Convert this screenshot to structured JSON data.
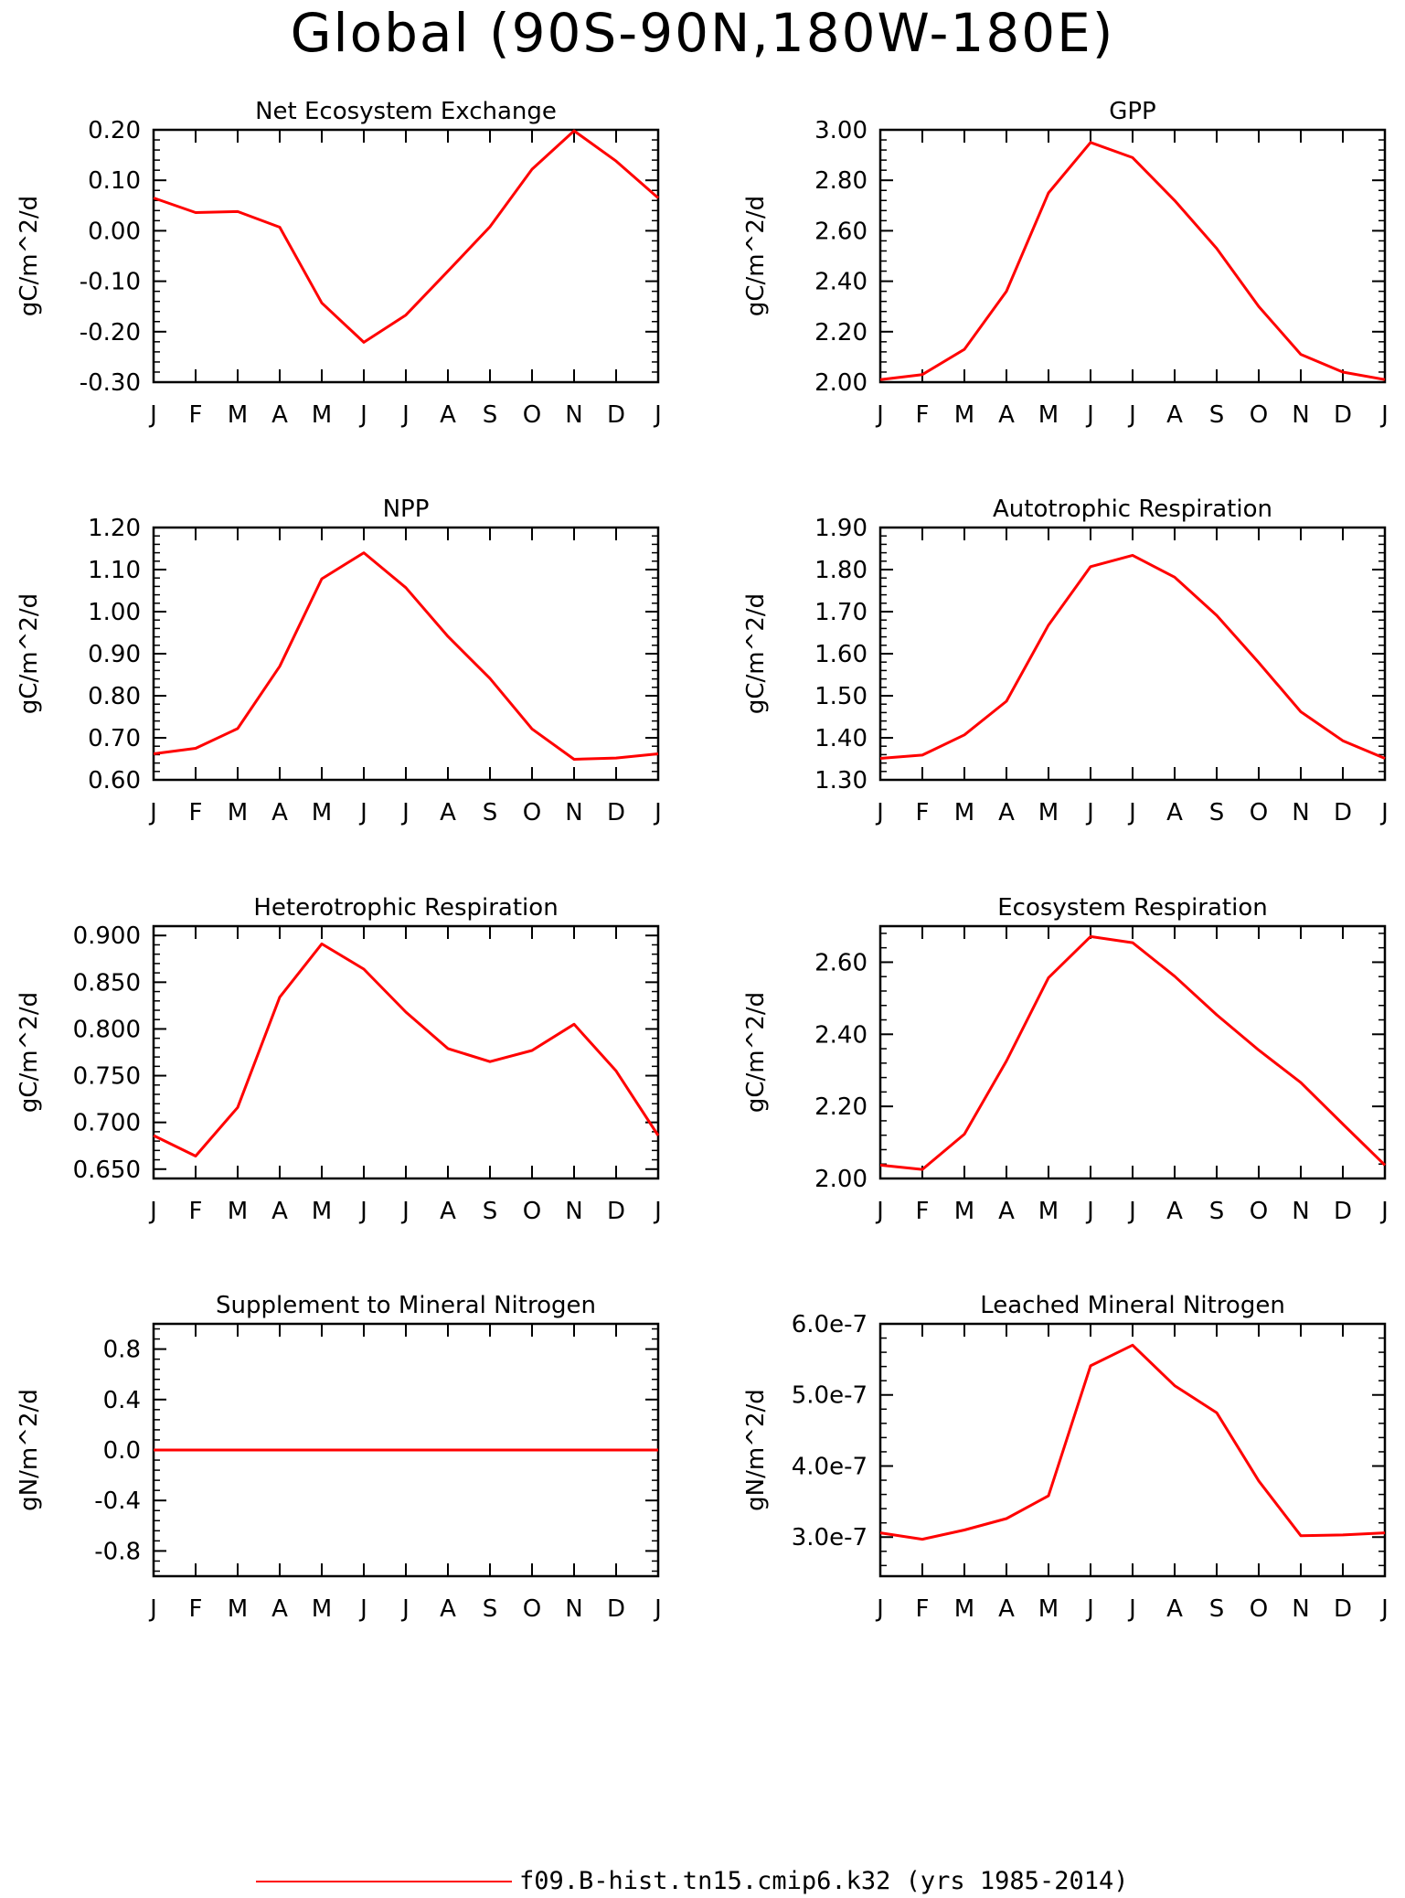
{
  "page_title": "Global (90S-90N,180W-180E)",
  "legend": {
    "label": "f09.B-hist.tn15.cmip6.k32 (yrs 1985-2014)",
    "color": "#ff0000"
  },
  "chart_data": [
    {
      "type": "line",
      "title": "Net Ecosystem Exchange",
      "ylabel": "gC/m^2/d",
      "categories": [
        "J",
        "F",
        "M",
        "A",
        "M",
        "J",
        "J",
        "A",
        "S",
        "O",
        "N",
        "D",
        "J"
      ],
      "ylim": [
        -0.3,
        0.2
      ],
      "yticks": [
        -0.3,
        -0.2,
        -0.1,
        0.0,
        0.1,
        0.2
      ],
      "ytick_labels": [
        "-0.30",
        "-0.20",
        "-0.10",
        "0.00",
        "0.10",
        "0.20"
      ],
      "values": [
        0.065,
        0.036,
        0.038,
        0.007,
        -0.143,
        -0.221,
        -0.167,
        -0.08,
        0.008,
        0.122,
        0.198,
        0.138,
        0.065
      ],
      "color": "#ff0000"
    },
    {
      "type": "line",
      "title": "GPP",
      "ylabel": "gC/m^2/d",
      "categories": [
        "J",
        "F",
        "M",
        "A",
        "M",
        "J",
        "J",
        "A",
        "S",
        "O",
        "N",
        "D",
        "J"
      ],
      "ylim": [
        2.0,
        3.0
      ],
      "yticks": [
        2.0,
        2.2,
        2.4,
        2.6,
        2.8,
        3.0
      ],
      "ytick_labels": [
        "2.00",
        "2.20",
        "2.40",
        "2.60",
        "2.80",
        "3.00"
      ],
      "values": [
        2.01,
        2.03,
        2.13,
        2.36,
        2.75,
        2.95,
        2.89,
        2.72,
        2.53,
        2.3,
        2.11,
        2.04,
        2.01
      ],
      "color": "#ff0000"
    },
    {
      "type": "line",
      "title": "NPP",
      "ylabel": "gC/m^2/d",
      "categories": [
        "J",
        "F",
        "M",
        "A",
        "M",
        "J",
        "J",
        "A",
        "S",
        "O",
        "N",
        "D",
        "J"
      ],
      "ylim": [
        0.6,
        1.2
      ],
      "yticks": [
        0.6,
        0.7,
        0.8,
        0.9,
        1.0,
        1.1,
        1.2
      ],
      "ytick_labels": [
        "0.60",
        "0.70",
        "0.80",
        "0.90",
        "1.00",
        "1.10",
        "1.20"
      ],
      "values": [
        0.662,
        0.675,
        0.722,
        0.87,
        1.078,
        1.14,
        1.057,
        0.941,
        0.841,
        0.721,
        0.649,
        0.652,
        0.662
      ],
      "color": "#ff0000"
    },
    {
      "type": "line",
      "title": "Autotrophic Respiration",
      "ylabel": "gC/m^2/d",
      "categories": [
        "J",
        "F",
        "M",
        "A",
        "M",
        "J",
        "J",
        "A",
        "S",
        "O",
        "N",
        "D",
        "J"
      ],
      "ylim": [
        1.3,
        1.9
      ],
      "yticks": [
        1.3,
        1.4,
        1.5,
        1.6,
        1.7,
        1.8,
        1.9
      ],
      "ytick_labels": [
        "1.30",
        "1.40",
        "1.50",
        "1.60",
        "1.70",
        "1.80",
        "1.90"
      ],
      "values": [
        1.351,
        1.359,
        1.407,
        1.487,
        1.668,
        1.807,
        1.834,
        1.782,
        1.691,
        1.579,
        1.462,
        1.393,
        1.351
      ],
      "color": "#ff0000"
    },
    {
      "type": "line",
      "title": "Heterotrophic Respiration",
      "ylabel": "gC/m^2/d",
      "categories": [
        "J",
        "F",
        "M",
        "A",
        "M",
        "J",
        "J",
        "A",
        "S",
        "O",
        "N",
        "D",
        "J"
      ],
      "ylim": [
        0.64,
        0.91
      ],
      "yticks": [
        0.65,
        0.7,
        0.75,
        0.8,
        0.85,
        0.9
      ],
      "ytick_labels": [
        "0.650",
        "0.700",
        "0.750",
        "0.800",
        "0.850",
        "0.900"
      ],
      "values": [
        0.686,
        0.664,
        0.716,
        0.834,
        0.891,
        0.864,
        0.818,
        0.779,
        0.765,
        0.777,
        0.805,
        0.755,
        0.686
      ],
      "color": "#ff0000"
    },
    {
      "type": "line",
      "title": "Ecosystem Respiration",
      "ylabel": "gC/m^2/d",
      "categories": [
        "J",
        "F",
        "M",
        "A",
        "M",
        "J",
        "J",
        "A",
        "S",
        "O",
        "N",
        "D",
        "J"
      ],
      "ylim": [
        2.0,
        2.7
      ],
      "yticks": [
        2.0,
        2.2,
        2.4,
        2.6
      ],
      "ytick_labels": [
        "2.00",
        "2.20",
        "2.40",
        "2.60"
      ],
      "values": [
        2.037,
        2.025,
        2.123,
        2.326,
        2.557,
        2.671,
        2.654,
        2.561,
        2.454,
        2.356,
        2.266,
        2.151,
        2.037
      ],
      "color": "#ff0000"
    },
    {
      "type": "line",
      "title": "Supplement to Mineral Nitrogen",
      "ylabel": "gN/m^2/d",
      "categories": [
        "J",
        "F",
        "M",
        "A",
        "M",
        "J",
        "J",
        "A",
        "S",
        "O",
        "N",
        "D",
        "J"
      ],
      "ylim": [
        -1.0,
        1.0
      ],
      "yticks": [
        -0.8,
        -0.4,
        0.0,
        0.4,
        0.8
      ],
      "ytick_labels": [
        "-0.8",
        "-0.4",
        "0.0",
        "0.4",
        "0.8"
      ],
      "values": [
        0,
        0,
        0,
        0,
        0,
        0,
        0,
        0,
        0,
        0,
        0,
        0,
        0
      ],
      "color": "#ff0000"
    },
    {
      "type": "line",
      "title": "Leached Mineral Nitrogen",
      "ylabel": "gN/m^2/d",
      "categories": [
        "J",
        "F",
        "M",
        "A",
        "M",
        "J",
        "J",
        "A",
        "S",
        "O",
        "N",
        "D",
        "J"
      ],
      "ylim": [
        2.45e-07,
        6e-07
      ],
      "yticks": [
        3e-07,
        4e-07,
        5e-07,
        6e-07
      ],
      "ytick_labels": [
        "3.0e-7",
        "4.0e-7",
        "5.0e-7",
        "6.0e-7"
      ],
      "values": [
        3.06e-07,
        2.97e-07,
        3.1e-07,
        3.26e-07,
        3.58e-07,
        5.41e-07,
        5.7e-07,
        5.13e-07,
        4.75e-07,
        3.79e-07,
        3.02e-07,
        3.03e-07,
        3.06e-07
      ],
      "color": "#ff0000"
    }
  ]
}
